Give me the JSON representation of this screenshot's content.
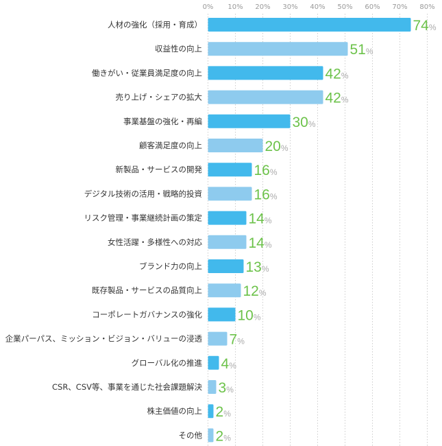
{
  "chart_data": {
    "type": "bar",
    "orientation": "horizontal",
    "categories": [
      "人材の強化（採用・育成）",
      "収益性の向上",
      "働きがい・従業員満足度の向上",
      "売り上げ・シェアの拡大",
      "事業基盤の強化・再編",
      "顧客満足度の向上",
      "新製品・サービスの開発",
      "デジタル技術の活用・戦略的投資",
      "リスク管理・事業継続計画の策定",
      "女性活躍・多様性への対応",
      "ブランド力の向上",
      "既存製品・サービスの品質向上",
      "コーポレートガバナンスの強化",
      "企業パーパス、ミッション・ビジョン・バリューの浸透",
      "グローバル化の推進",
      "CSR、CSV等、事業を通じた社会課題解決",
      "株主価値の向上",
      "その他"
    ],
    "values": [
      74,
      51,
      42,
      42,
      30,
      20,
      16,
      16,
      14,
      14,
      13,
      12,
      10,
      7,
      4,
      3,
      2,
      2
    ],
    "unit": "%",
    "xlim": [
      0,
      80
    ],
    "xticks": [
      "0%",
      "10%",
      "20%",
      "30%",
      "40%",
      "50%",
      "60%",
      "70%",
      "80%"
    ],
    "grid": true,
    "colors": {
      "bar_dark": "#42b9ec",
      "bar_light": "#8ecbee",
      "value": "#6cc24a"
    }
  }
}
